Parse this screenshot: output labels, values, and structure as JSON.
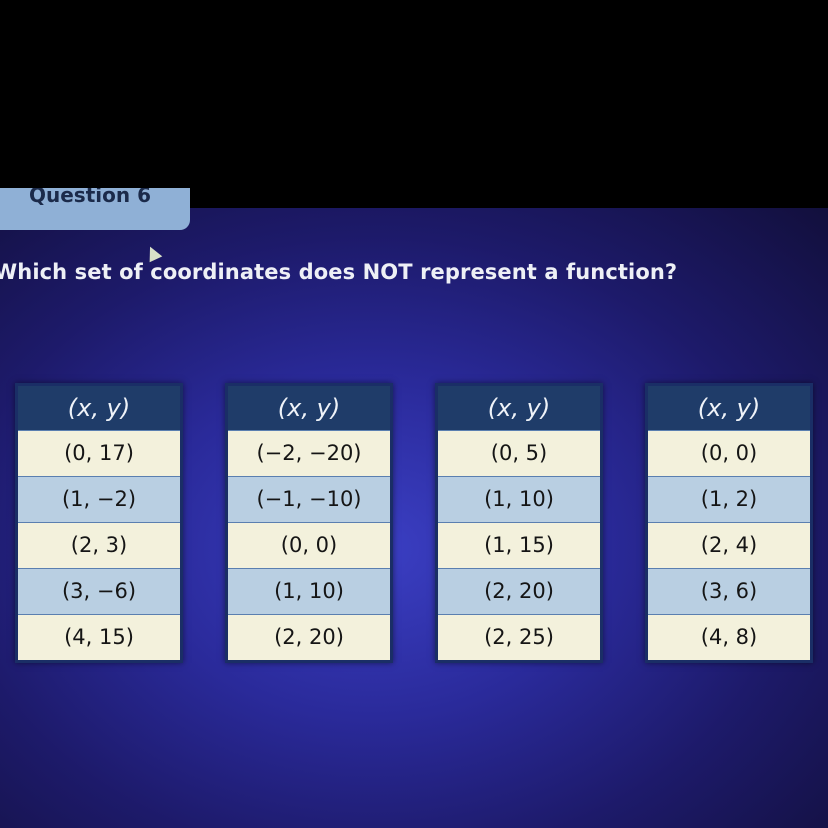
{
  "question_tab": {
    "label": "Question 6"
  },
  "question": {
    "text": "Which set of coordinates does NOT represent a function?"
  },
  "tables": [
    {
      "header": "(x, y)",
      "rows": [
        "(0, 17)",
        "(1, −2)",
        "(2, 3)",
        "(3, −6)",
        "(4, 15)"
      ]
    },
    {
      "header": "(x, y)",
      "rows": [
        "(−2, −20)",
        "(−1, −10)",
        "(0, 0)",
        "(1, 10)",
        "(2, 20)"
      ]
    },
    {
      "header": "(x, y)",
      "rows": [
        "(0, 5)",
        "(1, 10)",
        "(1, 15)",
        "(2, 20)",
        "(2, 25)"
      ]
    },
    {
      "header": "(x, y)",
      "rows": [
        "(0, 0)",
        "(1, 2)",
        "(2, 4)",
        "(3, 6)",
        "(4, 8)"
      ]
    }
  ],
  "colors": {
    "header": "#1f3c69",
    "row_light": "#f3f1dc",
    "row_blue": "#b9cfe2",
    "background": "#2a2a9a"
  }
}
